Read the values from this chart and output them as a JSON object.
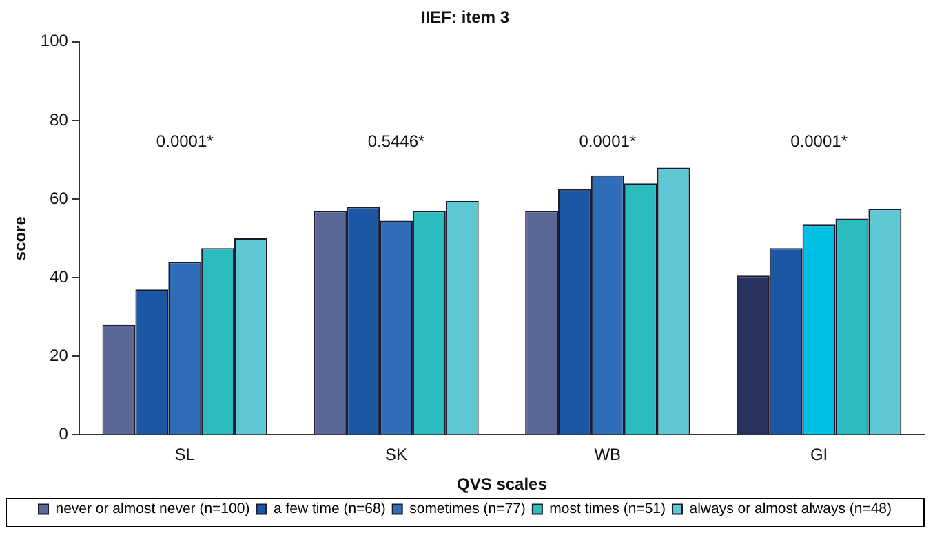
{
  "chart_data": {
    "type": "bar",
    "title": "IIEF: item 3",
    "xlabel": "QVS scales",
    "ylabel": "score",
    "categories": [
      "SL",
      "SK",
      "WB",
      "GI"
    ],
    "series": [
      {
        "name": "never or almost never (n=100)",
        "color": "#5b6796",
        "colors": [
          "#5b6796",
          "#5b6796",
          "#5b6796",
          "#27325f"
        ],
        "values": [
          28,
          57,
          57,
          40.5
        ]
      },
      {
        "name": "a few time (n=68)",
        "color": "#1c57a6",
        "values": [
          37,
          58,
          62.5,
          47.5
        ]
      },
      {
        "name": "sometimes (n=77)",
        "color": "#2f6db8",
        "colors": [
          "#2f6db8",
          "#2f6db8",
          "#2f6db8",
          "#00bfe6"
        ],
        "values": [
          44,
          54.5,
          66,
          53.5
        ]
      },
      {
        "name": "most times (n=51)",
        "color": "#2bbcbf",
        "values": [
          47.5,
          57,
          64,
          55
        ]
      },
      {
        "name": "always or almost always (n=48)",
        "color": "#5ec8d4",
        "values": [
          50,
          59.5,
          68,
          57.5
        ]
      }
    ],
    "ylim": [
      0,
      100
    ],
    "yticks": [
      0,
      20,
      40,
      60,
      80,
      100
    ],
    "grid": false,
    "legend": "bottom",
    "annotations": [
      "0.0001*",
      "0.5446*",
      "0.0001*",
      "0.0001*"
    ]
  }
}
